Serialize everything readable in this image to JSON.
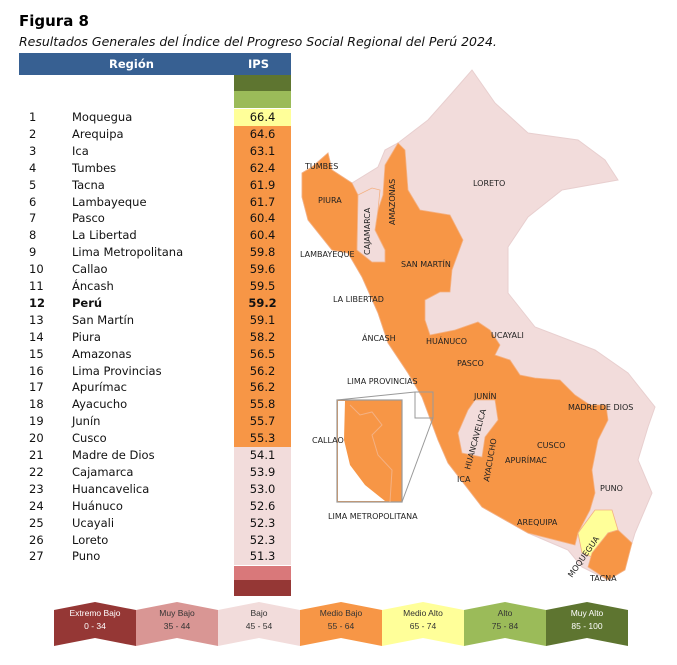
{
  "title": "Figura 8",
  "subtitle": "Resultados Generales del Índice del Progreso Social Regional del Perú 2024.",
  "table": {
    "headers": [
      "Región",
      "IPS"
    ],
    "rows": [
      {
        "rank": "1",
        "region": "Moquegua",
        "ips": "66.4",
        "level": "medio_alto"
      },
      {
        "rank": "2",
        "region": "Arequipa",
        "ips": "64.6",
        "level": "medio_bajo"
      },
      {
        "rank": "3",
        "region": "Ica",
        "ips": "63.1",
        "level": "medio_bajo"
      },
      {
        "rank": "4",
        "region": "Tumbes",
        "ips": "62.4",
        "level": "medio_bajo"
      },
      {
        "rank": "5",
        "region": "Tacna",
        "ips": "61.9",
        "level": "medio_bajo"
      },
      {
        "rank": "6",
        "region": "Lambayeque",
        "ips": "61.7",
        "level": "medio_bajo"
      },
      {
        "rank": "7",
        "region": "Pasco",
        "ips": "60.4",
        "level": "medio_bajo"
      },
      {
        "rank": "8",
        "region": "La Libertad",
        "ips": "60.4",
        "level": "medio_bajo"
      },
      {
        "rank": "9",
        "region": "Lima Metropolitana",
        "ips": "59.8",
        "level": "medio_bajo"
      },
      {
        "rank": "10",
        "region": "Callao",
        "ips": "59.6",
        "level": "medio_bajo"
      },
      {
        "rank": "11",
        "region": "Áncash",
        "ips": "59.5",
        "level": "medio_bajo"
      },
      {
        "rank": "12",
        "region": "Perú",
        "ips": "59.2",
        "level": "medio_bajo",
        "bold": true
      },
      {
        "rank": "13",
        "region": "San Martín",
        "ips": "59.1",
        "level": "medio_bajo"
      },
      {
        "rank": "14",
        "region": "Piura",
        "ips": "58.2",
        "level": "medio_bajo"
      },
      {
        "rank": "15",
        "region": "Amazonas",
        "ips": "56.5",
        "level": "medio_bajo"
      },
      {
        "rank": "16",
        "region": "Lima Provincias",
        "ips": "56.2",
        "level": "medio_bajo"
      },
      {
        "rank": "17",
        "region": "Apurímac",
        "ips": "56.2",
        "level": "medio_bajo"
      },
      {
        "rank": "18",
        "region": "Ayacucho",
        "ips": "55.8",
        "level": "medio_bajo"
      },
      {
        "rank": "19",
        "region": "Junín",
        "ips": "55.7",
        "level": "medio_bajo"
      },
      {
        "rank": "20",
        "region": "Cusco",
        "ips": "55.3",
        "level": "medio_bajo"
      },
      {
        "rank": "21",
        "region": "Madre de Dios",
        "ips": "54.1",
        "level": "bajo"
      },
      {
        "rank": "22",
        "region": "Cajamarca",
        "ips": "53.9",
        "level": "bajo"
      },
      {
        "rank": "23",
        "region": "Huancavelica",
        "ips": "53.0",
        "level": "bajo"
      },
      {
        "rank": "24",
        "region": "Huánuco",
        "ips": "52.6",
        "level": "bajo"
      },
      {
        "rank": "25",
        "region": "Ucayali",
        "ips": "52.3",
        "level": "bajo"
      },
      {
        "rank": "26",
        "region": "Loreto",
        "ips": "52.3",
        "level": "bajo"
      },
      {
        "rank": "27",
        "region": "Puno",
        "ips": "51.3",
        "level": "bajo"
      }
    ]
  },
  "colors": {
    "header": "#376092",
    "extremo_bajo": "#953735",
    "muy_bajo": "#d99694",
    "bajo": "#f2dcdb",
    "medio_bajo": "#f79646",
    "medio_alto": "#ffff99",
    "alto": "#9bbb59",
    "muy_alto": "#5e7530"
  },
  "map_labels": {
    "tumbes": "TUMBES",
    "piura": "PIURA",
    "lambayeque": "LAMBAYEQUE",
    "cajamarca": "CAJAMARCA",
    "amazonas": "AMAZONAS",
    "loreto": "LORETO",
    "san_martin": "SAN MARTÍN",
    "la_libertad": "LA LIBERTAD",
    "ancash": "ÁNCASH",
    "huanuco": "HUÁNUCO",
    "ucayali": "UCAYALI",
    "pasco": "PASCO",
    "lima_provincias": "LIMA PROVINCIAS",
    "junin": "JUNÍN",
    "madre_de_dios": "MADRE DE DIOS",
    "callao": "CALLAO",
    "huancavelica": "HUANCAVELICA",
    "cusco": "CUSCO",
    "ica": "ICA",
    "ayacucho": "AYACUCHO",
    "apurimac": "APURÍMAC",
    "puno": "PUNO",
    "lima_metropolitana": "LIMA METROPOLITANA",
    "arequipa": "AREQUIPA",
    "moquegua": "MOQUEGUA",
    "tacna": "TACNA"
  },
  "legend": [
    {
      "name": "Extremo Bajo",
      "range": "0 - 34",
      "color": "#953735",
      "text": "#fff"
    },
    {
      "name": "Muy Bajo",
      "range": "35 - 44",
      "color": "#d99694",
      "text": "#333"
    },
    {
      "name": "Bajo",
      "range": "45 - 54",
      "color": "#f2dcdb",
      "text": "#333"
    },
    {
      "name": "Medio Bajo",
      "range": "55 - 64",
      "color": "#f79646",
      "text": "#333"
    },
    {
      "name": "Medio Alto",
      "range": "65 - 74",
      "color": "#ffff99",
      "text": "#333"
    },
    {
      "name": "Alto",
      "range": "75 - 84",
      "color": "#9bbb59",
      "text": "#333"
    },
    {
      "name": "Muy Alto",
      "range": "85 - 100",
      "color": "#5e7530",
      "text": "#fff"
    }
  ]
}
